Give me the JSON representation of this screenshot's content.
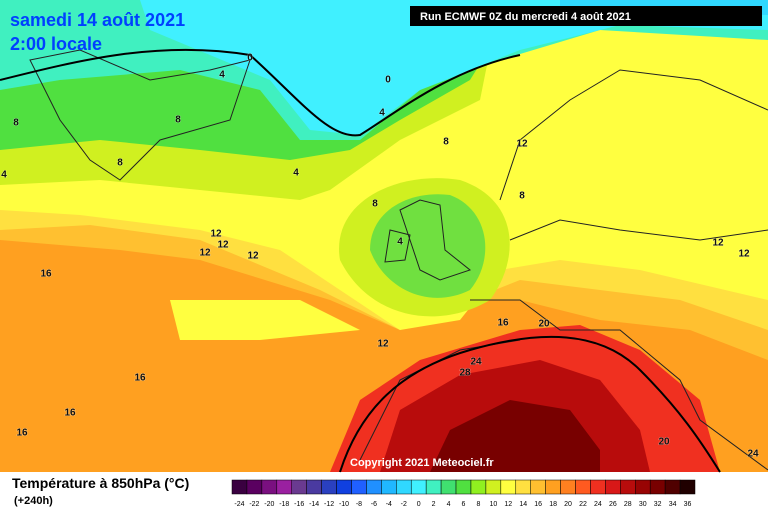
{
  "header": {
    "date": "samedi 14 août 2021",
    "time": "2:00 locale",
    "run": "Run ECMWF 0Z du mercredi 4 août 2021"
  },
  "copyright": "Copyright 2021 Meteociel.fr",
  "legend": {
    "title": "Température à 850hPa (°C)",
    "lead": "(+240h)",
    "ticks": [
      -24,
      -22,
      -20,
      -18,
      -16,
      -14,
      -12,
      -10,
      -8,
      -6,
      -4,
      -2,
      0,
      2,
      4,
      6,
      8,
      10,
      12,
      14,
      16,
      18,
      20,
      22,
      24,
      26,
      28,
      30,
      32,
      34,
      36
    ],
    "colors": [
      "#3a0040",
      "#5a0060",
      "#7a1080",
      "#9a20a0",
      "#6a3a90",
      "#4a3aa0",
      "#2a40c0",
      "#1040e0",
      "#2060ff",
      "#2090ff",
      "#20b8ff",
      "#30d8ff",
      "#40f0ff",
      "#40f0c0",
      "#40e070",
      "#50e040",
      "#90f020",
      "#d0f020",
      "#ffff40",
      "#ffe040",
      "#ffc030",
      "#ffa020",
      "#ff8020",
      "#ff5a20",
      "#f03020",
      "#d81818",
      "#b80c0c",
      "#980404",
      "#780000",
      "#500000",
      "#200000"
    ]
  },
  "contours": [
    "0",
    "0",
    "4",
    "4",
    "8",
    "8",
    "8",
    "8",
    "12",
    "8",
    "4",
    "8",
    "4",
    "12",
    "12",
    "12",
    "12",
    "16",
    "12",
    "12",
    "16",
    "20",
    "12",
    "24",
    "28",
    "16",
    "16",
    "16",
    "20",
    "24",
    "4"
  ]
}
